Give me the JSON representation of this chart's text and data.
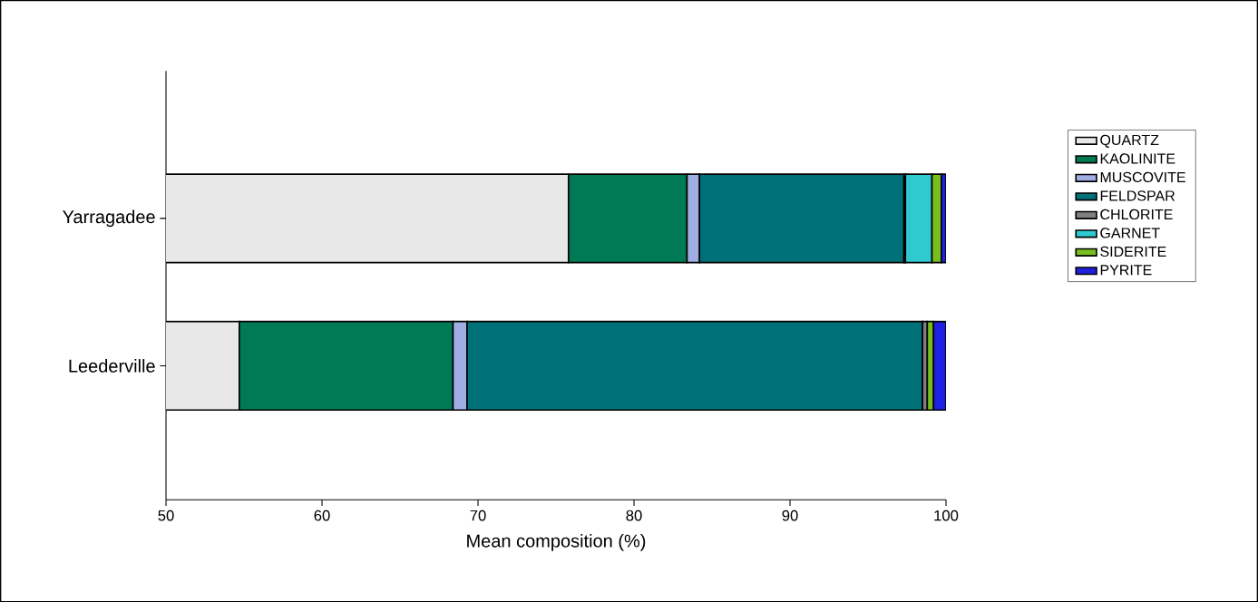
{
  "chart_data": {
    "type": "bar",
    "orientation": "horizontal",
    "xlabel": "Mean composition (%)",
    "categories": [
      "Yarragadee",
      "Leederville"
    ],
    "series": [
      {
        "name": "QUARTZ",
        "color": "#e8e8e8",
        "base": [
          0,
          0
        ],
        "values": [
          75.8,
          54.7
        ]
      },
      {
        "name": "KAOLINITE",
        "color": "#007a55",
        "base": [
          75.8,
          54.7
        ],
        "values": [
          7.6,
          13.7
        ]
      },
      {
        "name": "MUSCOVITE",
        "color": "#a0aee4",
        "base": [
          83.4,
          68.4
        ],
        "values": [
          0.8,
          0.9
        ]
      },
      {
        "name": "FELDSPAR",
        "color": "#007179",
        "base": [
          84.2,
          69.3
        ],
        "values": [
          13.1,
          29.2
        ]
      },
      {
        "name": "CHLORITE",
        "color": "#808080",
        "base": [
          97.3,
          98.5
        ],
        "values": [
          0.1,
          0.3
        ]
      },
      {
        "name": "GARNET",
        "color": "#2ecad0",
        "base": [
          97.4,
          null
        ],
        "values": [
          1.7,
          null
        ]
      },
      {
        "name": "SIDERITE",
        "color": "#78be20",
        "base": [
          99.1,
          98.8
        ],
        "values": [
          0.6,
          0.4
        ]
      },
      {
        "name": "PYRITE",
        "color": "#2020e0",
        "base": [
          99.7,
          99.2
        ],
        "values": [
          0.3,
          0.8
        ]
      }
    ],
    "xlim": [
      50,
      100
    ],
    "xticks": [
      50,
      60,
      70,
      80,
      90,
      100
    ],
    "grid": false,
    "legend": "right"
  }
}
